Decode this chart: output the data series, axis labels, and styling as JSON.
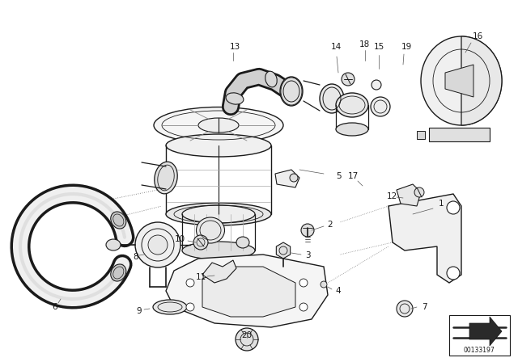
{
  "bg_color": "#ffffff",
  "line_color": "#1a1a1a",
  "diagram_number": "00133197",
  "figsize": [
    6.4,
    4.48
  ],
  "dpi": 100
}
